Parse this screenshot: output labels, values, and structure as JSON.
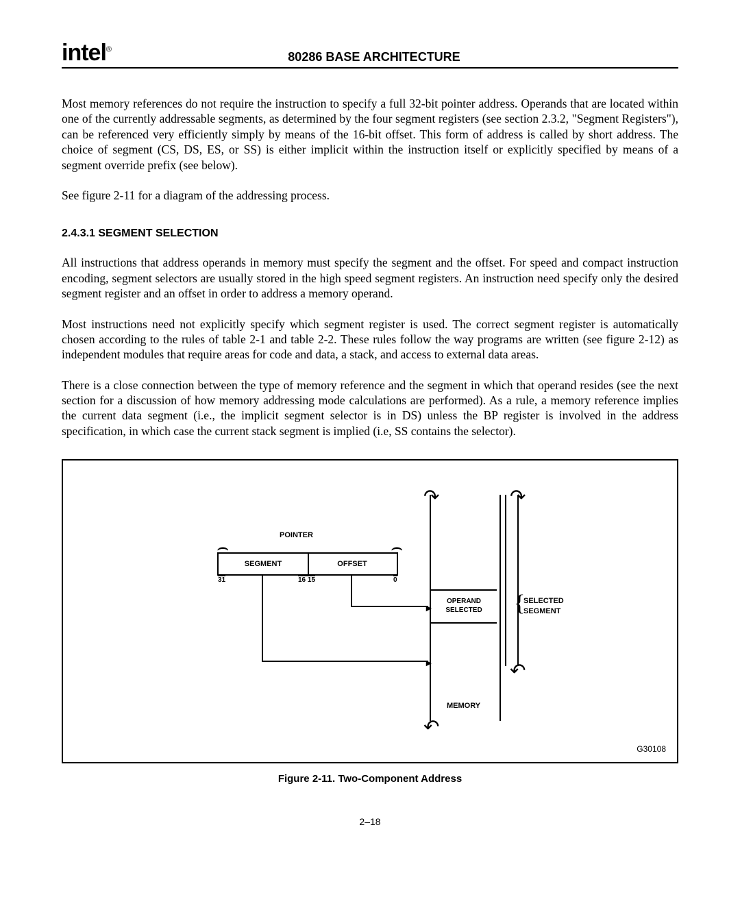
{
  "header": {
    "logo": "intel",
    "reg_mark": "®",
    "title": "80286 BASE ARCHITECTURE"
  },
  "paragraphs": {
    "p1": "Most memory references do not require the instruction to specify a full 32-bit pointer address. Operands that are located within one of the currently addressable segments, as determined by the four segment registers (see section 2.3.2, \"Segment Registers\"), can be referenced very efficiently simply by means of the 16-bit offset. This form of address is called by short address. The choice of segment (CS, DS, ES, or SS) is either implicit within the instruction itself or explicitly specified by means of a segment override prefix (see below).",
    "p2": "See figure 2-11 for a diagram of the addressing process.",
    "p3": "All instructions that address operands in memory must specify the segment and the offset. For speed and compact instruction encoding, segment selectors are usually stored in the high speed segment registers. An instruction need specify only the desired segment register and an offset in order to address a memory operand.",
    "p4": "Most instructions need not explicitly specify which segment register is used. The correct segment register is automatically chosen according to the rules of table 2-1 and table 2-2. These rules follow the way programs are written (see figure 2-12) as independent modules that require areas for code and data, a stack, and access to external data areas.",
    "p5": "There is a close connection between the type of memory reference and the segment in which that operand resides (see the next section for a discussion of how memory addressing mode calculations are performed). As a rule, a memory reference implies the current data segment (i.e., the implicit segment selector is in DS) unless the BP register is involved in the address specification, in which case the current stack segment is implied (i.e, SS contains the selector)."
  },
  "section": {
    "title": "2.4.3.1 SEGMENT SELECTION"
  },
  "figure": {
    "pointer_label": "POINTER",
    "segment_label": "SEGMENT",
    "offset_label": "OFFSET",
    "n31": "31",
    "n1615": "16 15",
    "n0": "0",
    "operand_l1": "OPERAND",
    "operand_l2": "SELECTED",
    "selected_l1": "SELECTED",
    "selected_l2": "SEGMENT",
    "memory_label": "MEMORY",
    "gnum": "G30108",
    "caption": "Figure 2-11.  Two-Component Address"
  },
  "page_number": "2–18"
}
